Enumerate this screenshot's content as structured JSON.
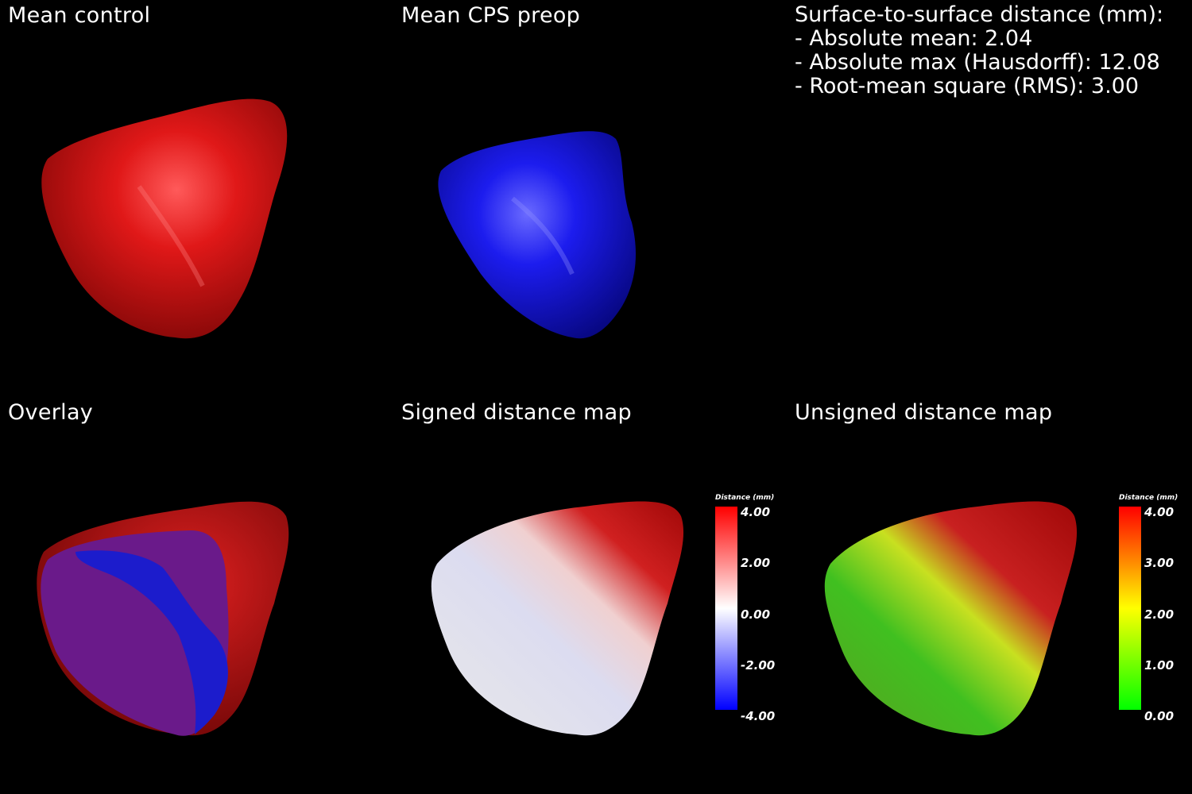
{
  "panels": {
    "mean_control": {
      "title": "Mean control",
      "color": "#c81414"
    },
    "mean_cps_preop": {
      "title": "Mean CPS preop",
      "color": "#1414c8"
    },
    "overlay": {
      "title": "Overlay",
      "colors": [
        "#b01010",
        "#6a1a8a",
        "#1c1ccc"
      ]
    },
    "signed": {
      "title": "Signed distance map"
    },
    "unsigned": {
      "title": "Unsigned distance map"
    }
  },
  "stats": {
    "heading": "Surface-to-surface distance (mm):",
    "lines": [
      "- Absolute mean: 2.04",
      "- Absolute max (Hausdorff): 12.08",
      "- Root-mean square (RMS): 3.00"
    ]
  },
  "signed_legend": {
    "title": "Distance (mm)",
    "ticks": [
      "4.00",
      "2.00",
      "0.00",
      "-2.00",
      "-4.00"
    ],
    "colors": [
      "#ff0000",
      "#ffffff",
      "#0000ff"
    ]
  },
  "unsigned_legend": {
    "title": "Distance (mm)",
    "ticks": [
      "4.00",
      "3.00",
      "2.00",
      "1.00",
      "0.00"
    ],
    "colors": [
      "#ff0000",
      "#ffff00",
      "#00ff00"
    ]
  }
}
